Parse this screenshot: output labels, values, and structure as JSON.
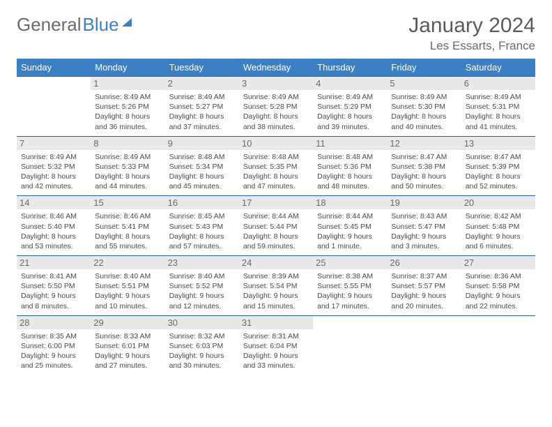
{
  "brand": {
    "part1": "General",
    "part2": "Blue"
  },
  "title": "January 2024",
  "location": "Les Essarts, France",
  "colors": {
    "header_bg": "#3b7fc4",
    "header_text": "#ffffff",
    "border": "#2a5f9e",
    "daynum_bg": "#e9e9e9",
    "text": "#4a4a4a",
    "muted": "#6a6a6a"
  },
  "weekdays": [
    "Sunday",
    "Monday",
    "Tuesday",
    "Wednesday",
    "Thursday",
    "Friday",
    "Saturday"
  ],
  "weeks": [
    [
      {
        "day": "",
        "empty": true,
        "sunrise": "",
        "sunset": "",
        "daylight1": "",
        "daylight2": ""
      },
      {
        "day": "1",
        "sunrise": "Sunrise: 8:49 AM",
        "sunset": "Sunset: 5:26 PM",
        "daylight1": "Daylight: 8 hours",
        "daylight2": "and 36 minutes."
      },
      {
        "day": "2",
        "sunrise": "Sunrise: 8:49 AM",
        "sunset": "Sunset: 5:27 PM",
        "daylight1": "Daylight: 8 hours",
        "daylight2": "and 37 minutes."
      },
      {
        "day": "3",
        "sunrise": "Sunrise: 8:49 AM",
        "sunset": "Sunset: 5:28 PM",
        "daylight1": "Daylight: 8 hours",
        "daylight2": "and 38 minutes."
      },
      {
        "day": "4",
        "sunrise": "Sunrise: 8:49 AM",
        "sunset": "Sunset: 5:29 PM",
        "daylight1": "Daylight: 8 hours",
        "daylight2": "and 39 minutes."
      },
      {
        "day": "5",
        "sunrise": "Sunrise: 8:49 AM",
        "sunset": "Sunset: 5:30 PM",
        "daylight1": "Daylight: 8 hours",
        "daylight2": "and 40 minutes."
      },
      {
        "day": "6",
        "sunrise": "Sunrise: 8:49 AM",
        "sunset": "Sunset: 5:31 PM",
        "daylight1": "Daylight: 8 hours",
        "daylight2": "and 41 minutes."
      }
    ],
    [
      {
        "day": "7",
        "sunrise": "Sunrise: 8:49 AM",
        "sunset": "Sunset: 5:32 PM",
        "daylight1": "Daylight: 8 hours",
        "daylight2": "and 42 minutes."
      },
      {
        "day": "8",
        "sunrise": "Sunrise: 8:49 AM",
        "sunset": "Sunset: 5:33 PM",
        "daylight1": "Daylight: 8 hours",
        "daylight2": "and 44 minutes."
      },
      {
        "day": "9",
        "sunrise": "Sunrise: 8:48 AM",
        "sunset": "Sunset: 5:34 PM",
        "daylight1": "Daylight: 8 hours",
        "daylight2": "and 45 minutes."
      },
      {
        "day": "10",
        "sunrise": "Sunrise: 8:48 AM",
        "sunset": "Sunset: 5:35 PM",
        "daylight1": "Daylight: 8 hours",
        "daylight2": "and 47 minutes."
      },
      {
        "day": "11",
        "sunrise": "Sunrise: 8:48 AM",
        "sunset": "Sunset: 5:36 PM",
        "daylight1": "Daylight: 8 hours",
        "daylight2": "and 48 minutes."
      },
      {
        "day": "12",
        "sunrise": "Sunrise: 8:47 AM",
        "sunset": "Sunset: 5:38 PM",
        "daylight1": "Daylight: 8 hours",
        "daylight2": "and 50 minutes."
      },
      {
        "day": "13",
        "sunrise": "Sunrise: 8:47 AM",
        "sunset": "Sunset: 5:39 PM",
        "daylight1": "Daylight: 8 hours",
        "daylight2": "and 52 minutes."
      }
    ],
    [
      {
        "day": "14",
        "sunrise": "Sunrise: 8:46 AM",
        "sunset": "Sunset: 5:40 PM",
        "daylight1": "Daylight: 8 hours",
        "daylight2": "and 53 minutes."
      },
      {
        "day": "15",
        "sunrise": "Sunrise: 8:46 AM",
        "sunset": "Sunset: 5:41 PM",
        "daylight1": "Daylight: 8 hours",
        "daylight2": "and 55 minutes."
      },
      {
        "day": "16",
        "sunrise": "Sunrise: 8:45 AM",
        "sunset": "Sunset: 5:43 PM",
        "daylight1": "Daylight: 8 hours",
        "daylight2": "and 57 minutes."
      },
      {
        "day": "17",
        "sunrise": "Sunrise: 8:44 AM",
        "sunset": "Sunset: 5:44 PM",
        "daylight1": "Daylight: 8 hours",
        "daylight2": "and 59 minutes."
      },
      {
        "day": "18",
        "sunrise": "Sunrise: 8:44 AM",
        "sunset": "Sunset: 5:45 PM",
        "daylight1": "Daylight: 9 hours",
        "daylight2": "and 1 minute."
      },
      {
        "day": "19",
        "sunrise": "Sunrise: 8:43 AM",
        "sunset": "Sunset: 5:47 PM",
        "daylight1": "Daylight: 9 hours",
        "daylight2": "and 3 minutes."
      },
      {
        "day": "20",
        "sunrise": "Sunrise: 8:42 AM",
        "sunset": "Sunset: 5:48 PM",
        "daylight1": "Daylight: 9 hours",
        "daylight2": "and 6 minutes."
      }
    ],
    [
      {
        "day": "21",
        "sunrise": "Sunrise: 8:41 AM",
        "sunset": "Sunset: 5:50 PM",
        "daylight1": "Daylight: 9 hours",
        "daylight2": "and 8 minutes."
      },
      {
        "day": "22",
        "sunrise": "Sunrise: 8:40 AM",
        "sunset": "Sunset: 5:51 PM",
        "daylight1": "Daylight: 9 hours",
        "daylight2": "and 10 minutes."
      },
      {
        "day": "23",
        "sunrise": "Sunrise: 8:40 AM",
        "sunset": "Sunset: 5:52 PM",
        "daylight1": "Daylight: 9 hours",
        "daylight2": "and 12 minutes."
      },
      {
        "day": "24",
        "sunrise": "Sunrise: 8:39 AM",
        "sunset": "Sunset: 5:54 PM",
        "daylight1": "Daylight: 9 hours",
        "daylight2": "and 15 minutes."
      },
      {
        "day": "25",
        "sunrise": "Sunrise: 8:38 AM",
        "sunset": "Sunset: 5:55 PM",
        "daylight1": "Daylight: 9 hours",
        "daylight2": "and 17 minutes."
      },
      {
        "day": "26",
        "sunrise": "Sunrise: 8:37 AM",
        "sunset": "Sunset: 5:57 PM",
        "daylight1": "Daylight: 9 hours",
        "daylight2": "and 20 minutes."
      },
      {
        "day": "27",
        "sunrise": "Sunrise: 8:36 AM",
        "sunset": "Sunset: 5:58 PM",
        "daylight1": "Daylight: 9 hours",
        "daylight2": "and 22 minutes."
      }
    ],
    [
      {
        "day": "28",
        "sunrise": "Sunrise: 8:35 AM",
        "sunset": "Sunset: 6:00 PM",
        "daylight1": "Daylight: 9 hours",
        "daylight2": "and 25 minutes."
      },
      {
        "day": "29",
        "sunrise": "Sunrise: 8:33 AM",
        "sunset": "Sunset: 6:01 PM",
        "daylight1": "Daylight: 9 hours",
        "daylight2": "and 27 minutes."
      },
      {
        "day": "30",
        "sunrise": "Sunrise: 8:32 AM",
        "sunset": "Sunset: 6:03 PM",
        "daylight1": "Daylight: 9 hours",
        "daylight2": "and 30 minutes."
      },
      {
        "day": "31",
        "sunrise": "Sunrise: 8:31 AM",
        "sunset": "Sunset: 6:04 PM",
        "daylight1": "Daylight: 9 hours",
        "daylight2": "and 33 minutes."
      },
      {
        "day": "",
        "empty": true,
        "sunrise": "",
        "sunset": "",
        "daylight1": "",
        "daylight2": ""
      },
      {
        "day": "",
        "empty": true,
        "sunrise": "",
        "sunset": "",
        "daylight1": "",
        "daylight2": ""
      },
      {
        "day": "",
        "empty": true,
        "sunrise": "",
        "sunset": "",
        "daylight1": "",
        "daylight2": ""
      }
    ]
  ]
}
